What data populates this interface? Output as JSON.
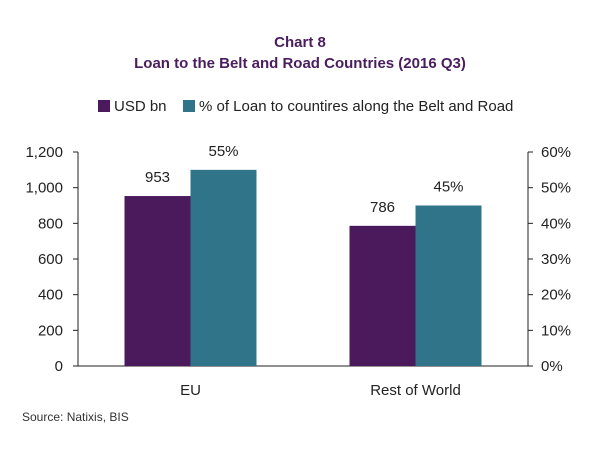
{
  "chart_data": {
    "type": "bar",
    "title": "Chart 8",
    "subtitle": "Loan to the Belt and Road Countries (2016 Q3)",
    "categories": [
      "EU",
      "Rest of World"
    ],
    "series": [
      {
        "name": "USD bn",
        "axis": "left",
        "color": "#4a1a5c",
        "values": [
          953,
          786
        ],
        "labels": [
          "953",
          "786"
        ]
      },
      {
        "name": "% of Loan to countires along the Belt and Road",
        "axis": "right",
        "color": "#2f7489",
        "values": [
          55,
          45
        ],
        "labels": [
          "55%",
          "45%"
        ]
      }
    ],
    "y_left": {
      "min": 0,
      "max": 1200,
      "ticks": [
        "0",
        "200",
        "400",
        "600",
        "800",
        "1,000",
        "1,200"
      ]
    },
    "y_right": {
      "min": 0,
      "max": 60,
      "ticks": [
        "0%",
        "10%",
        "20%",
        "30%",
        "40%",
        "50%",
        "60%"
      ]
    },
    "grid": false,
    "legend_position": "top",
    "source": "Source: Natixis, BIS"
  }
}
